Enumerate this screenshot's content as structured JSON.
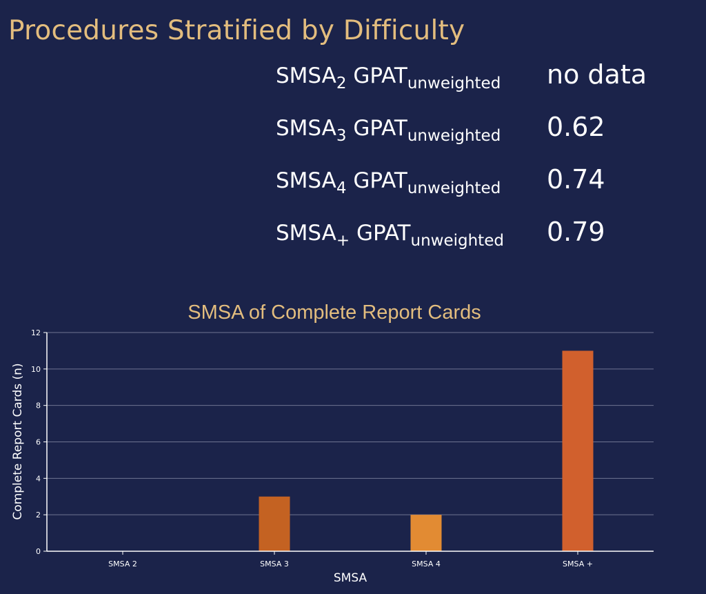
{
  "title": "Procedures Stratified by Difficulty",
  "metrics": [
    {
      "label_main": "SMSA",
      "label_sub": "2",
      "label_mid": " GPAT",
      "label_sub2": "unweighted",
      "value": "no data"
    },
    {
      "label_main": "SMSA",
      "label_sub": "3",
      "label_mid": " GPAT",
      "label_sub2": "unweighted",
      "value": "0.62"
    },
    {
      "label_main": "SMSA",
      "label_sub": "4",
      "label_mid": " GPAT",
      "label_sub2": "unweighted",
      "value": "0.74"
    },
    {
      "label_main": "SMSA",
      "label_sub": "+",
      "label_mid": " GPAT",
      "label_sub2": "unweighted",
      "value": "0.79"
    }
  ],
  "colors": {
    "background": "#1b234a",
    "title": "#e3bd7e",
    "grid": "#6f7592",
    "axis_text": "#ffffff"
  },
  "chart_data": {
    "type": "bar",
    "title": "SMSA of Complete Report Cards",
    "xlabel": "SMSA",
    "ylabel": "Complete Report Cards (n)",
    "categories": [
      "SMSA 2",
      "SMSA 3",
      "SMSA 4",
      "SMSA +"
    ],
    "values": [
      0,
      3,
      2,
      11
    ],
    "bar_colors": [
      "#c46222",
      "#c46222",
      "#e28b33",
      "#d1602d"
    ],
    "ylim": [
      0,
      12
    ],
    "yticks": [
      0,
      2,
      4,
      6,
      8,
      10,
      12
    ],
    "grid": true,
    "legend": "none"
  }
}
